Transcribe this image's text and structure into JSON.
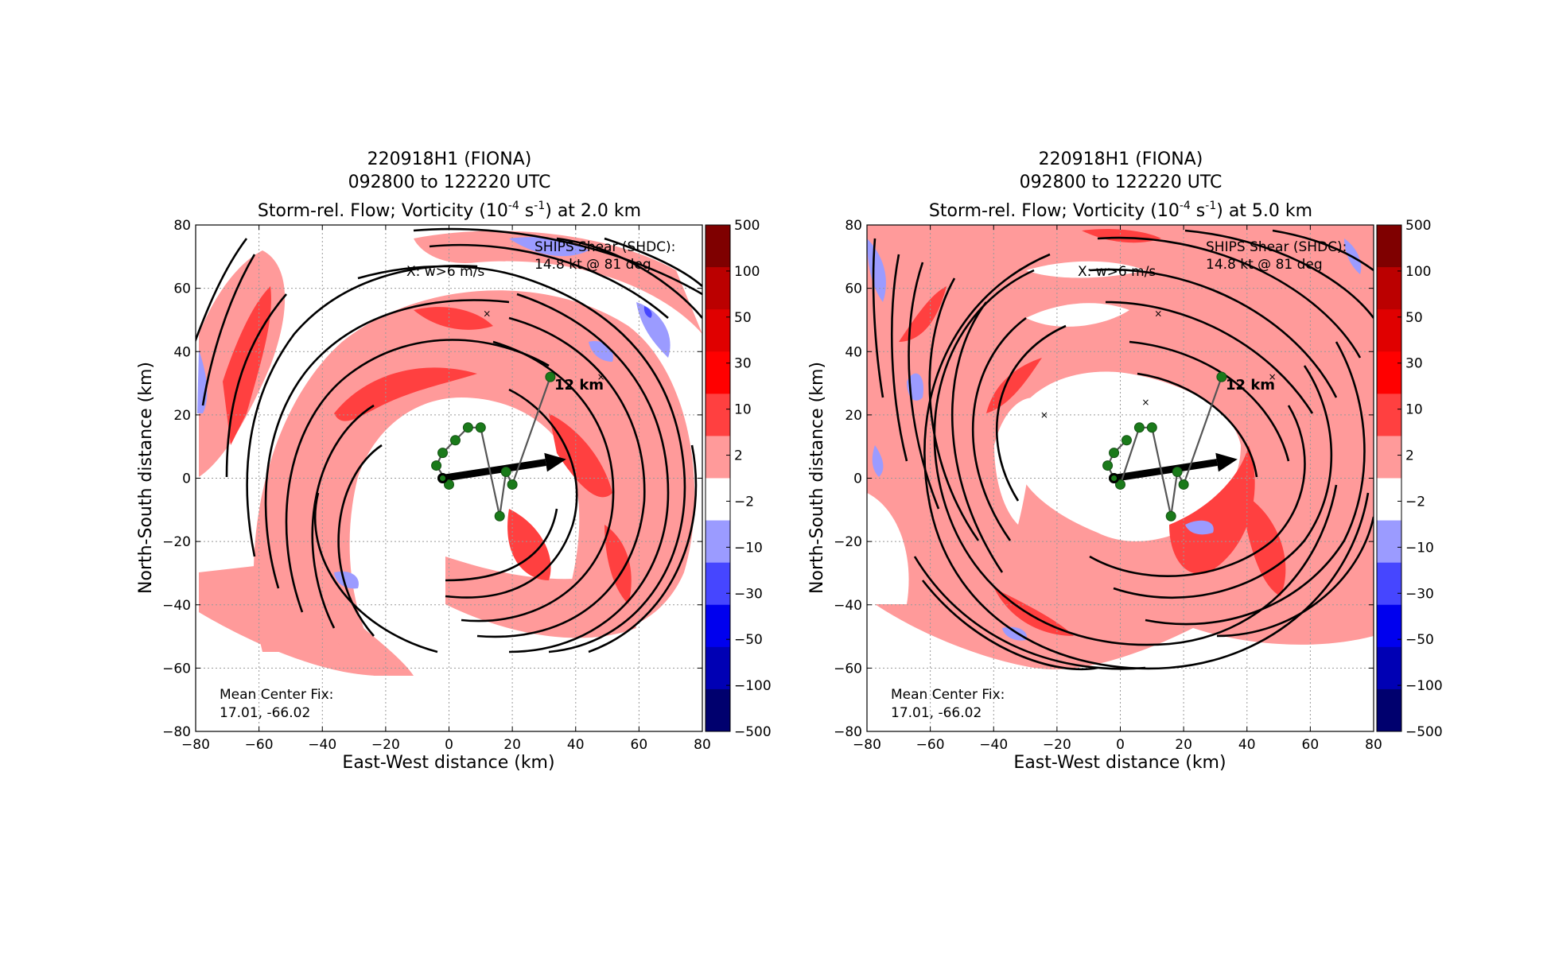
{
  "chart_data": [
    {
      "type": "heatmap",
      "title_lines": [
        "220918H1 (FIONA)",
        "092800 to 122220 UTC"
      ],
      "title_main": "Storm-rel. Flow; Vorticity (10",
      "title_exp1": "-4",
      "title_mid": " s",
      "title_exp2": "-1",
      "title_end": ") at 2.0 km",
      "xlabel": "East-West distance (km)",
      "ylabel": "North-South distance (km)",
      "xlim": [
        -80,
        80
      ],
      "ylim": [
        -80,
        80
      ],
      "xticks": [
        "−80",
        "−60",
        "−40",
        "−20",
        "0",
        "20",
        "40",
        "60",
        "80"
      ],
      "yticks": [
        "80",
        "60",
        "40",
        "20",
        "0",
        "−20",
        "−40",
        "−60",
        "−80"
      ],
      "grid": true,
      "ships_shear_label": "SHIPS Shear (SHDC):",
      "ships_shear_value": "14.8 kt @ 81 deg",
      "updraft_note": "X: w>6 m/s",
      "tilt_label": "12 km",
      "center_fix_label": "Mean Center Fix:",
      "center_fix_value": "17.01, -66.02",
      "shear_vector_end": [
        37,
        6
      ],
      "tilt_track": [
        [
          -2,
          0
        ],
        [
          0,
          -2
        ],
        [
          -4,
          4
        ],
        [
          -2,
          8
        ],
        [
          2,
          12
        ],
        [
          6,
          16
        ],
        [
          10,
          16
        ],
        [
          16,
          -12
        ],
        [
          18,
          2
        ],
        [
          20,
          -2
        ],
        [
          32,
          32
        ]
      ],
      "updraft_marks": [
        [
          12,
          52
        ],
        [
          48,
          32
        ]
      ],
      "colorbar_levels": [
        "500",
        "100",
        "50",
        "30",
        "10",
        "2",
        "−2",
        "−10",
        "−30",
        "−50",
        "−100",
        "−500"
      ],
      "colorbar_colors": [
        "#7f0000",
        "#bb0000",
        "#e00000",
        "#ff0000",
        "#ff4040",
        "#ff9a9a",
        "#ffffff",
        "#9b9bff",
        "#4646ff",
        "#0000ee",
        "#0000b4",
        "#00006e"
      ]
    },
    {
      "type": "heatmap",
      "title_lines": [
        "220918H1 (FIONA)",
        "092800 to 122220 UTC"
      ],
      "title_main": "Storm-rel. Flow; Vorticity (10",
      "title_exp1": "-4",
      "title_mid": " s",
      "title_exp2": "-1",
      "title_end": ") at 5.0 km",
      "xlabel": "East-West distance (km)",
      "ylabel": "North-South distance (km)",
      "xlim": [
        -80,
        80
      ],
      "ylim": [
        -80,
        80
      ],
      "xticks": [
        "−80",
        "−60",
        "−40",
        "−20",
        "0",
        "20",
        "40",
        "60",
        "80"
      ],
      "yticks": [
        "80",
        "60",
        "40",
        "20",
        "0",
        "−20",
        "−40",
        "−60",
        "−80"
      ],
      "grid": true,
      "ships_shear_label": "SHIPS Shear (SHDC):",
      "ships_shear_value": "14.8 kt @ 81 deg",
      "updraft_note": "X: w>6 m/s",
      "tilt_label": "12 km",
      "center_fix_label": "Mean Center Fix:",
      "center_fix_value": "17.01, -66.02",
      "shear_vector_end": [
        37,
        6
      ],
      "tilt_track": [
        [
          2,
          12
        ],
        [
          -2,
          8
        ],
        [
          -4,
          4
        ],
        [
          -2,
          0
        ],
        [
          0,
          -2
        ],
        [
          6,
          16
        ],
        [
          10,
          16
        ],
        [
          16,
          -12
        ],
        [
          18,
          2
        ],
        [
          20,
          -2
        ],
        [
          32,
          32
        ]
      ],
      "updraft_marks": [
        [
          12,
          52
        ],
        [
          8,
          24
        ],
        [
          -24,
          20
        ],
        [
          48,
          32
        ]
      ],
      "colorbar_levels": [
        "500",
        "100",
        "50",
        "30",
        "10",
        "2",
        "−2",
        "−10",
        "−30",
        "−50",
        "−100",
        "−500"
      ],
      "colorbar_colors": [
        "#7f0000",
        "#bb0000",
        "#e00000",
        "#ff0000",
        "#ff4040",
        "#ff9a9a",
        "#ffffff",
        "#9b9bff",
        "#4646ff",
        "#0000ee",
        "#0000b4",
        "#00006e"
      ]
    }
  ]
}
